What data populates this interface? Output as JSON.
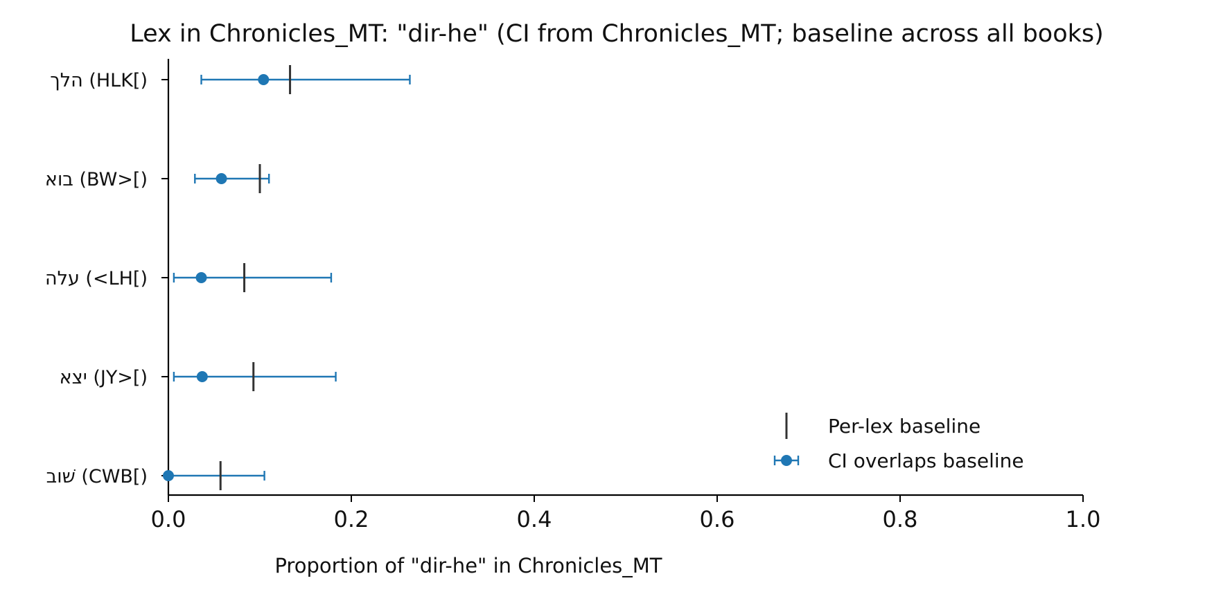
{
  "chart_data": {
    "type": "scatter",
    "title": "Lex in Chronicles_MT: \"dir-he\" (CI from Chronicles_MT; baseline across all books)",
    "xlabel": "Proportion of \"dir-he\" in Chronicles_MT",
    "ylabel": "",
    "xlim": [
      0.0,
      1.0
    ],
    "xticks": [
      "0.0",
      "0.2",
      "0.4",
      "0.6",
      "0.8",
      "1.0"
    ],
    "grid": false,
    "legend_position": "lower-right",
    "categories": [
      "הלך (HLK[)",
      "בוא (BW>[)",
      "עלה (<LH[)",
      "יצא (JY>[)",
      "שׁוב (CWB[)"
    ],
    "series": [
      {
        "name": "CI overlaps baseline",
        "color": "#1f77b4",
        "points": [
          {
            "category": "הלך (HLK[)",
            "estimate": 0.104,
            "ci_low": 0.036,
            "ci_high": 0.264
          },
          {
            "category": "בוא (BW>[)",
            "estimate": 0.058,
            "ci_low": 0.029,
            "ci_high": 0.11
          },
          {
            "category": "עלה (<LH[)",
            "estimate": 0.036,
            "ci_low": 0.006,
            "ci_high": 0.178
          },
          {
            "category": "יצא (JY>[)",
            "estimate": 0.037,
            "ci_low": 0.006,
            "ci_high": 0.183
          },
          {
            "category": "שׁוב (CWB[)",
            "estimate": 0.0,
            "ci_low": 0.0,
            "ci_high": 0.105
          }
        ]
      },
      {
        "name": "Per-lex baseline",
        "color": "#333333",
        "values": [
          0.133,
          0.1,
          0.083,
          0.093,
          0.057
        ]
      }
    ],
    "legend": [
      "Per-lex baseline",
      "CI overlaps baseline"
    ]
  }
}
